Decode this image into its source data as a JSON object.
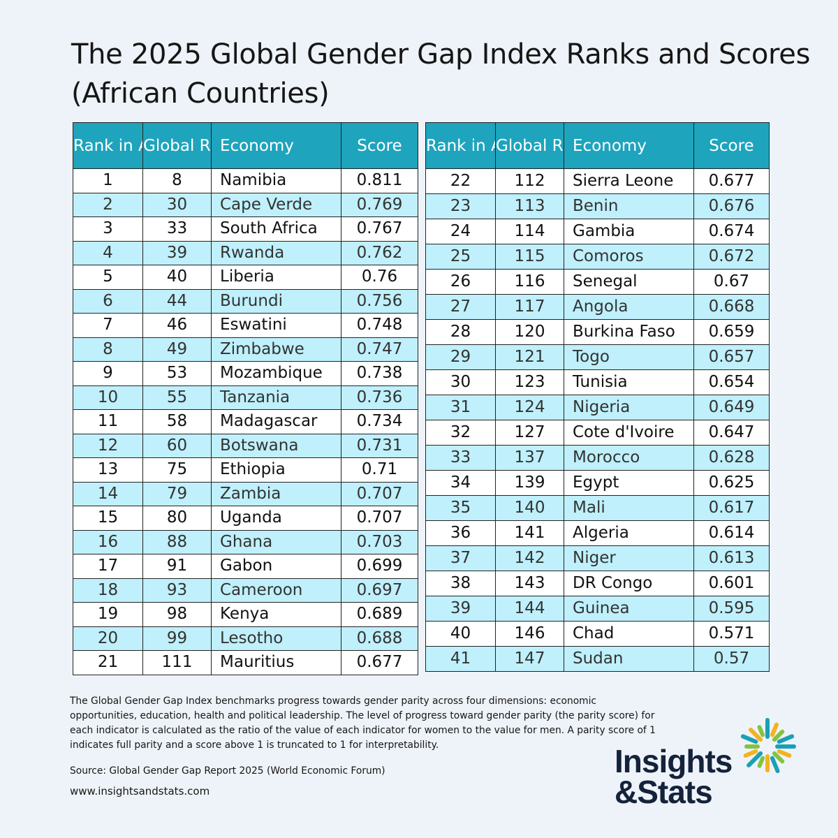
{
  "title": "The 2025 Global Gender Gap Index Ranks and Scores (African Countries)",
  "columns": {
    "rank_africa": "Rank in Africa",
    "global_rank": "Global Rank",
    "economy": "Economy",
    "score": "Score"
  },
  "left_rows": [
    {
      "rank": "1",
      "global": "8",
      "economy": "Namibia",
      "score": "0.811"
    },
    {
      "rank": "2",
      "global": "30",
      "economy": "Cape Verde",
      "score": "0.769"
    },
    {
      "rank": "3",
      "global": "33",
      "economy": "South Africa",
      "score": "0.767"
    },
    {
      "rank": "4",
      "global": "39",
      "economy": "Rwanda",
      "score": "0.762"
    },
    {
      "rank": "5",
      "global": "40",
      "economy": "Liberia",
      "score": "0.76"
    },
    {
      "rank": "6",
      "global": "44",
      "economy": "Burundi",
      "score": "0.756"
    },
    {
      "rank": "7",
      "global": "46",
      "economy": "Eswatini",
      "score": "0.748"
    },
    {
      "rank": "8",
      "global": "49",
      "economy": "Zimbabwe",
      "score": "0.747"
    },
    {
      "rank": "9",
      "global": "53",
      "economy": "Mozambique",
      "score": "0.738"
    },
    {
      "rank": "10",
      "global": "55",
      "economy": "Tanzania",
      "score": "0.736"
    },
    {
      "rank": "11",
      "global": "58",
      "economy": "Madagascar",
      "score": "0.734"
    },
    {
      "rank": "12",
      "global": "60",
      "economy": "Botswana",
      "score": "0.731"
    },
    {
      "rank": "13",
      "global": "75",
      "economy": "Ethiopia",
      "score": "0.71"
    },
    {
      "rank": "14",
      "global": "79",
      "economy": "Zambia",
      "score": "0.707"
    },
    {
      "rank": "15",
      "global": "80",
      "economy": "Uganda",
      "score": "0.707"
    },
    {
      "rank": "16",
      "global": "88",
      "economy": "Ghana",
      "score": "0.703"
    },
    {
      "rank": "17",
      "global": "91",
      "economy": "Gabon",
      "score": "0.699"
    },
    {
      "rank": "18",
      "global": "93",
      "economy": "Cameroon",
      "score": "0.697"
    },
    {
      "rank": "19",
      "global": "98",
      "economy": "Kenya",
      "score": "0.689"
    },
    {
      "rank": "20",
      "global": "99",
      "economy": "Lesotho",
      "score": "0.688"
    },
    {
      "rank": "21",
      "global": "111",
      "economy": "Mauritius",
      "score": "0.677"
    }
  ],
  "right_rows": [
    {
      "rank": "22",
      "global": "112",
      "economy": "Sierra Leone",
      "score": "0.677"
    },
    {
      "rank": "23",
      "global": "113",
      "economy": "Benin",
      "score": "0.676"
    },
    {
      "rank": "24",
      "global": "114",
      "economy": "Gambia",
      "score": "0.674"
    },
    {
      "rank": "25",
      "global": "115",
      "economy": "Comoros",
      "score": "0.672"
    },
    {
      "rank": "26",
      "global": "116",
      "economy": "Senegal",
      "score": "0.67"
    },
    {
      "rank": "27",
      "global": "117",
      "economy": "Angola",
      "score": "0.668"
    },
    {
      "rank": "28",
      "global": "120",
      "economy": "Burkina Faso",
      "score": "0.659"
    },
    {
      "rank": "29",
      "global": "121",
      "economy": "Togo",
      "score": "0.657"
    },
    {
      "rank": "30",
      "global": "123",
      "economy": "Tunisia",
      "score": "0.654"
    },
    {
      "rank": "31",
      "global": "124",
      "economy": "Nigeria",
      "score": "0.649"
    },
    {
      "rank": "32",
      "global": "127",
      "economy": "Cote d'Ivoire",
      "score": "0.647"
    },
    {
      "rank": "33",
      "global": "137",
      "economy": "Morocco",
      "score": "0.628"
    },
    {
      "rank": "34",
      "global": "139",
      "economy": "Egypt",
      "score": "0.625"
    },
    {
      "rank": "35",
      "global": "140",
      "economy": "Mali",
      "score": "0.617"
    },
    {
      "rank": "36",
      "global": "141",
      "economy": "Algeria",
      "score": "0.614"
    },
    {
      "rank": "37",
      "global": "142",
      "economy": "Niger",
      "score": "0.613"
    },
    {
      "rank": "38",
      "global": "143",
      "economy": "DR Congo",
      "score": "0.601"
    },
    {
      "rank": "39",
      "global": "144",
      "economy": "Guinea",
      "score": "0.595"
    },
    {
      "rank": "40",
      "global": "146",
      "economy": "Chad",
      "score": "0.571"
    },
    {
      "rank": "41",
      "global": "147",
      "economy": "Sudan",
      "score": "0.57"
    }
  ],
  "note": "The Global Gender Gap Index benchmarks progress towards gender parity across four dimensions: economic opportunities, education, health and political leadership. The level of progress toward gender parity (the parity score) for each indicator is calculated as the ratio of the value of each indicator for women to the value for men. A parity score of 1 indicates full parity and a score above 1 is truncated to 1 for interpretability.",
  "source": "Source: Global Gender Gap Report 2025 (World Economic Forum)",
  "website": "www.insightsandstats.com",
  "logo": {
    "line1": "Insights",
    "line2": "&Stats",
    "icon": "sunburst-logo-icon",
    "colors": [
      "#1b9fb5",
      "#f4b223",
      "#84c341"
    ]
  },
  "colors": {
    "header": "#1ea4bd",
    "alt_row": "#bff0fb",
    "background": "#eef3f9"
  }
}
